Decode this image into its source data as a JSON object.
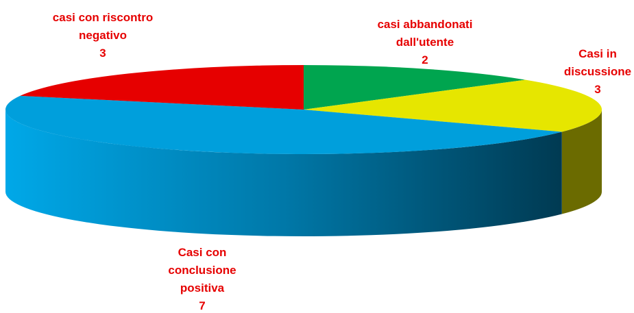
{
  "chart_data": {
    "type": "pie3d",
    "categories": [
      "casi abbandonati dall'utente",
      "Casi in discussione",
      "Casi con conclusione positiva",
      "casi con riscontro negativo"
    ],
    "values": [
      2,
      3,
      7,
      3
    ],
    "colors": [
      "#00a54f",
      "#e6e600",
      "#009fdc",
      "#e60000"
    ]
  }
}
